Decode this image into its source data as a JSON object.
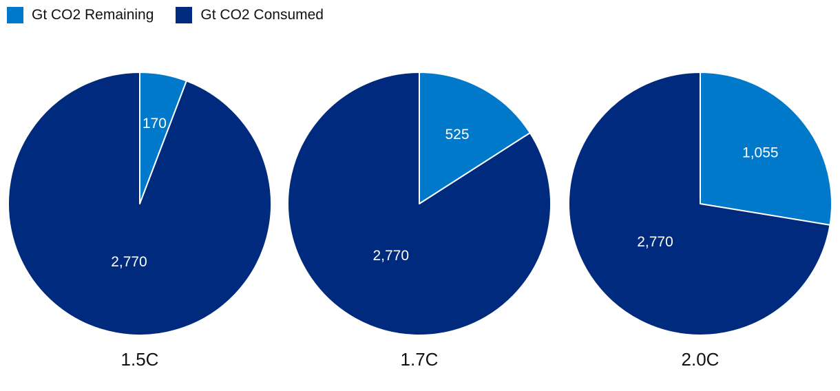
{
  "legend": {
    "remaining_label": "Gt CO2 Remaining",
    "consumed_label": "Gt CO2 Consumed"
  },
  "colors": {
    "remaining": "#0079CB",
    "consumed": "#002A7D",
    "label_text": "#ffffff",
    "title_text": "#111111"
  },
  "chart_data": [
    {
      "type": "pie",
      "title": "1.5C",
      "series": [
        {
          "name": "Gt CO2 Remaining",
          "value": 170,
          "label": "170"
        },
        {
          "name": "Gt CO2 Consumed",
          "value": 2770,
          "label": "2,770"
        }
      ]
    },
    {
      "type": "pie",
      "title": "1.7C",
      "series": [
        {
          "name": "Gt CO2 Remaining",
          "value": 525,
          "label": "525"
        },
        {
          "name": "Gt CO2 Consumed",
          "value": 2770,
          "label": "2,770"
        }
      ]
    },
    {
      "type": "pie",
      "title": "2.0C",
      "series": [
        {
          "name": "Gt CO2 Remaining",
          "value": 1055,
          "label": "1,055"
        },
        {
          "name": "Gt CO2 Consumed",
          "value": 2770,
          "label": "2,770"
        }
      ]
    }
  ]
}
